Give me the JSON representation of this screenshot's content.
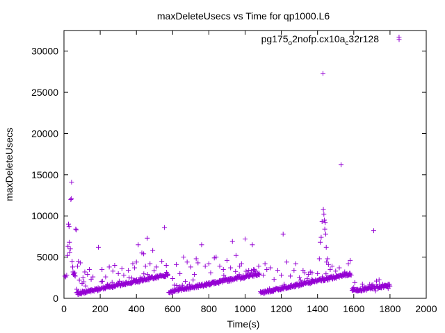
{
  "chart_data": {
    "type": "scatter",
    "title": "maxDeleteUsecs vs Time for qp1000.L6",
    "xlabel": "Time(s)",
    "ylabel": "maxDeleteUsecs",
    "xlim": [
      0,
      2000
    ],
    "ylim": [
      0,
      32500
    ],
    "xticks": [
      "0",
      "200",
      "400",
      "600",
      "800",
      "1000",
      "1200",
      "1400",
      "1600",
      "1800",
      "2000"
    ],
    "yticks": [
      "0",
      "5000",
      "10000",
      "15000",
      "20000",
      "25000",
      "30000"
    ],
    "grid": false,
    "legend_position": "top-right",
    "marker": "+",
    "colors": {
      "series": "#9400d3",
      "axis": "#000000"
    },
    "legend": {
      "base": "pg175",
      "sub1": "o",
      "mid": "2nofp.cx10a",
      "sub2": "c",
      "tail": "32r128"
    },
    "series": [
      {
        "segments": [
          {
            "x0": 70,
            "x1": 575,
            "y0": 500,
            "y1": 2800,
            "n": 220
          },
          {
            "x0": 580,
            "x1": 1080,
            "y0": 700,
            "y1": 2900,
            "n": 220
          },
          {
            "x0": 1085,
            "x1": 1585,
            "y0": 600,
            "y1": 2900,
            "n": 220
          },
          {
            "x0": 1590,
            "x1": 1800,
            "y0": 800,
            "y1": 1500,
            "n": 90
          }
        ],
        "points": [
          [
            5,
            2700
          ],
          [
            10,
            2600
          ],
          [
            15,
            2800
          ],
          [
            20,
            5200
          ],
          [
            22,
            6300
          ],
          [
            25,
            9000
          ],
          [
            28,
            8700
          ],
          [
            30,
            6800
          ],
          [
            32,
            5600
          ],
          [
            35,
            6000
          ],
          [
            38,
            12000
          ],
          [
            40,
            12100
          ],
          [
            42,
            14100
          ],
          [
            45,
            4500
          ],
          [
            48,
            3800
          ],
          [
            50,
            3200
          ],
          [
            52,
            2900
          ],
          [
            55,
            3000
          ],
          [
            58,
            2800
          ],
          [
            60,
            3100
          ],
          [
            62,
            2700
          ],
          [
            65,
            8400
          ],
          [
            68,
            8300
          ],
          [
            75,
            3900
          ],
          [
            80,
            4500
          ],
          [
            85,
            2200
          ],
          [
            90,
            4300
          ],
          [
            100,
            1800
          ],
          [
            105,
            2500
          ],
          [
            110,
            2000
          ],
          [
            115,
            3200
          ],
          [
            120,
            1500
          ],
          [
            130,
            2900
          ],
          [
            140,
            3500
          ],
          [
            150,
            2300
          ],
          [
            160,
            2600
          ],
          [
            190,
            6200
          ],
          [
            210,
            3500
          ],
          [
            230,
            2600
          ],
          [
            250,
            3800
          ],
          [
            270,
            3300
          ],
          [
            280,
            4000
          ],
          [
            300,
            3000
          ],
          [
            320,
            3600
          ],
          [
            330,
            2800
          ],
          [
            355,
            3400
          ],
          [
            380,
            4200
          ],
          [
            390,
            3700
          ],
          [
            400,
            4400
          ],
          [
            410,
            6500
          ],
          [
            430,
            5500
          ],
          [
            440,
            5400
          ],
          [
            450,
            3900
          ],
          [
            460,
            7300
          ],
          [
            475,
            4200
          ],
          [
            490,
            5800
          ],
          [
            510,
            3800
          ],
          [
            540,
            4500
          ],
          [
            555,
            8600
          ],
          [
            565,
            4000
          ],
          [
            600,
            2400
          ],
          [
            610,
            1600
          ],
          [
            620,
            4100
          ],
          [
            640,
            3000
          ],
          [
            660,
            5000
          ],
          [
            680,
            4400
          ],
          [
            700,
            3800
          ],
          [
            720,
            2900
          ],
          [
            730,
            4800
          ],
          [
            740,
            4300
          ],
          [
            760,
            6500
          ],
          [
            780,
            3900
          ],
          [
            800,
            4200
          ],
          [
            810,
            3100
          ],
          [
            830,
            4900
          ],
          [
            840,
            5000
          ],
          [
            860,
            3900
          ],
          [
            880,
            3500
          ],
          [
            900,
            4600
          ],
          [
            920,
            3700
          ],
          [
            930,
            6900
          ],
          [
            950,
            5200
          ],
          [
            970,
            3900
          ],
          [
            980,
            4200
          ],
          [
            1000,
            7200
          ],
          [
            1020,
            3400
          ],
          [
            1040,
            6500
          ],
          [
            1060,
            3300
          ],
          [
            1075,
            3900
          ],
          [
            1100,
            2800
          ],
          [
            1110,
            4200
          ],
          [
            1120,
            3500
          ],
          [
            1140,
            3700
          ],
          [
            1160,
            2300
          ],
          [
            1180,
            3400
          ],
          [
            1200,
            2800
          ],
          [
            1210,
            7800
          ],
          [
            1230,
            4400
          ],
          [
            1250,
            2700
          ],
          [
            1270,
            3400
          ],
          [
            1280,
            4200
          ],
          [
            1300,
            2500
          ],
          [
            1320,
            3400
          ],
          [
            1330,
            3100
          ],
          [
            1350,
            2900
          ],
          [
            1360,
            3200
          ],
          [
            1370,
            3100
          ],
          [
            1400,
            3000
          ],
          [
            1410,
            4800
          ],
          [
            1415,
            6800
          ],
          [
            1420,
            7400
          ],
          [
            1425,
            9300
          ],
          [
            1430,
            27300
          ],
          [
            1432,
            10800
          ],
          [
            1435,
            10200
          ],
          [
            1438,
            9500
          ],
          [
            1440,
            8400
          ],
          [
            1442,
            9200
          ],
          [
            1445,
            7800
          ],
          [
            1448,
            6200
          ],
          [
            1450,
            4400
          ],
          [
            1455,
            4800
          ],
          [
            1460,
            4100
          ],
          [
            1470,
            3500
          ],
          [
            1480,
            3900
          ],
          [
            1500,
            3300
          ],
          [
            1520,
            3700
          ],
          [
            1530,
            16200
          ],
          [
            1550,
            3200
          ],
          [
            1570,
            4200
          ],
          [
            1580,
            4600
          ],
          [
            1600,
            1300
          ],
          [
            1620,
            1100
          ],
          [
            1640,
            900
          ],
          [
            1650,
            1400
          ],
          [
            1660,
            1000
          ],
          [
            1680,
            1200
          ],
          [
            1700,
            1600
          ],
          [
            1710,
            8200
          ],
          [
            1720,
            900
          ],
          [
            1740,
            1300
          ],
          [
            1760,
            1700
          ],
          [
            1780,
            1500
          ],
          [
            1790,
            1200
          ],
          [
            1850,
            31700
          ]
        ]
      }
    ]
  }
}
